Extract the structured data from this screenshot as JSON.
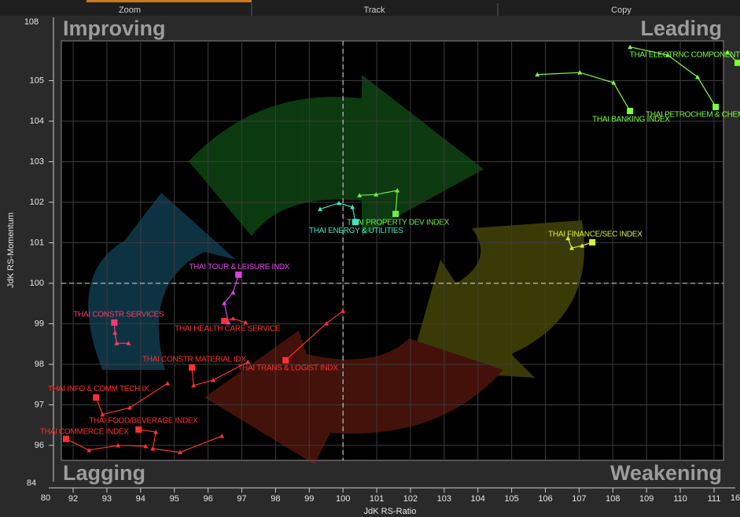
{
  "toolbar": {
    "items": [
      "Zoom",
      "Track",
      "Copy"
    ]
  },
  "chart_data": {
    "type": "scatter",
    "x_label": "JdK RS-Ratio",
    "y_label": "JdK RS-Momentum",
    "quadrants": {
      "top_left": "Improving",
      "top_right": "Leading",
      "bottom_left": "Lagging",
      "bottom_right": "Weakening"
    },
    "xlim": [
      91.65,
      111.28
    ],
    "ylim": [
      95.63,
      105.98
    ],
    "xticks": [
      92,
      93,
      94,
      95,
      96,
      97,
      98,
      99,
      100,
      101,
      102,
      103,
      104,
      105,
      106,
      107,
      108,
      109,
      110,
      111
    ],
    "yticks": [
      96,
      97,
      98,
      99,
      100,
      101,
      102,
      103,
      104,
      105
    ],
    "x_break_labels": [
      "80",
      "16"
    ],
    "y_break_labels": [
      "108",
      "84"
    ],
    "reference": {
      "x": 100,
      "y": 100
    },
    "grid": true,
    "series": [
      {
        "name": "THAI ELECTRNC COMPONENT",
        "color": "#7cff3a",
        "x": [
          111.4,
          111.7
        ],
        "y": [
          105.7,
          105.44
        ]
      },
      {
        "name": "THAI BANKING INDEX",
        "color": "#7cff3a",
        "x": [
          105.76,
          107.02,
          108.02,
          108.51
        ],
        "y": [
          105.15,
          105.2,
          104.95,
          104.25
        ]
      },
      {
        "name": "THAI PETROCHEM & CHEM I",
        "color": "#7cff3a",
        "x": [
          108.51,
          109.63,
          110.51,
          111.05
        ],
        "y": [
          105.83,
          105.63,
          105.09,
          104.35
        ]
      },
      {
        "name": "THAI FINANCE/SEC INDEX",
        "color": "#d4f03a",
        "x": [
          106.67,
          106.78,
          107.09,
          107.39
        ],
        "y": [
          101.11,
          100.87,
          100.93,
          101.01
        ]
      },
      {
        "name": "THAI PROPERTY DEV INDEX",
        "color": "#6cf040",
        "x": [
          100.49,
          100.98,
          101.61,
          101.56
        ],
        "y": [
          102.17,
          102.19,
          102.29,
          101.71
        ]
      },
      {
        "name": "THAI ENERGY & UTILITIES",
        "color": "#3ee8c0",
        "x": [
          99.32,
          99.88,
          100.28,
          100.37
        ],
        "y": [
          101.83,
          101.98,
          101.88,
          101.51
        ]
      },
      {
        "name": "THAI TOUR & LEISURE INDX",
        "color": "#e040e8",
        "x": [
          96.6,
          96.48,
          96.74,
          96.9
        ],
        "y": [
          99.03,
          99.51,
          99.77,
          100.21
        ]
      },
      {
        "name": "THAI HEALTH CARE SERVICE",
        "color": "#ff3030",
        "x": [
          97.11,
          96.74,
          96.48
        ],
        "y": [
          99.03,
          99.13,
          99.07
        ]
      },
      {
        "name": "THAI CONSTR SERVICES",
        "color": "#ff3a6a",
        "x": [
          93.64,
          93.29,
          93.24,
          93.22
        ],
        "y": [
          98.52,
          98.52,
          98.78,
          99.03
        ]
      },
      {
        "name": "THAI TRANS & LOGIST INDX",
        "color": "#ff3030",
        "x": [
          100,
          99.51,
          98.3
        ],
        "y": [
          99.32,
          99.01,
          98.1
        ]
      },
      {
        "name": "THAI CONSTR MATERIAL IDX",
        "color": "#ff3030",
        "x": [
          97.18,
          96.15,
          95.57,
          95.52
        ],
        "y": [
          98.06,
          97.61,
          97.48,
          97.92
        ]
      },
      {
        "name": "THAI INFO & COMM TECH IX",
        "color": "#ff3030",
        "x": [
          94.8,
          93.68,
          92.87,
          92.68
        ],
        "y": [
          97.53,
          96.93,
          96.76,
          97.18
        ]
      },
      {
        "name": "THAI FOOD/BEVERAGE INDEX",
        "color": "#ff3030",
        "x": [
          96.41,
          95.17,
          94.36,
          94.45,
          93.94
        ],
        "y": [
          96.23,
          95.83,
          95.92,
          96.33,
          96.39
        ]
      },
      {
        "name": "THAI COMMERCE INDEX",
        "color": "#ff3030",
        "x": [
          94.15,
          93.33,
          92.47,
          91.79
        ],
        "y": [
          95.98,
          96.0,
          95.88,
          96.16
        ]
      }
    ]
  }
}
